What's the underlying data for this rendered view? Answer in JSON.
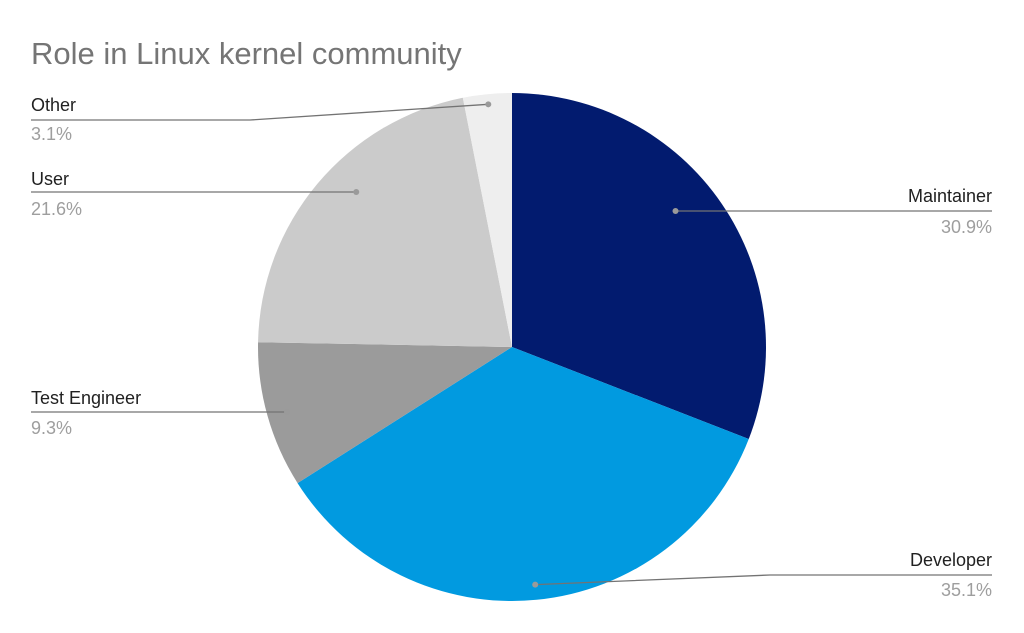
{
  "chart_data": {
    "type": "pie",
    "title": "Role in Linux kernel community",
    "categories": [
      "Maintainer",
      "Developer",
      "Test Engineer",
      "User",
      "Other"
    ],
    "values": [
      30.9,
      35.1,
      9.3,
      21.6,
      3.1
    ],
    "value_labels": [
      "30.9%",
      "35.1%",
      "9.3%",
      "21.6%",
      "3.1%"
    ],
    "colors": [
      "#021b6f",
      "#019ae0",
      "#9b9b9b",
      "#cbcbcb",
      "#eeeeee"
    ],
    "start": "12 o'clock",
    "direction": "clockwise",
    "legend": "none (callout labels)"
  }
}
